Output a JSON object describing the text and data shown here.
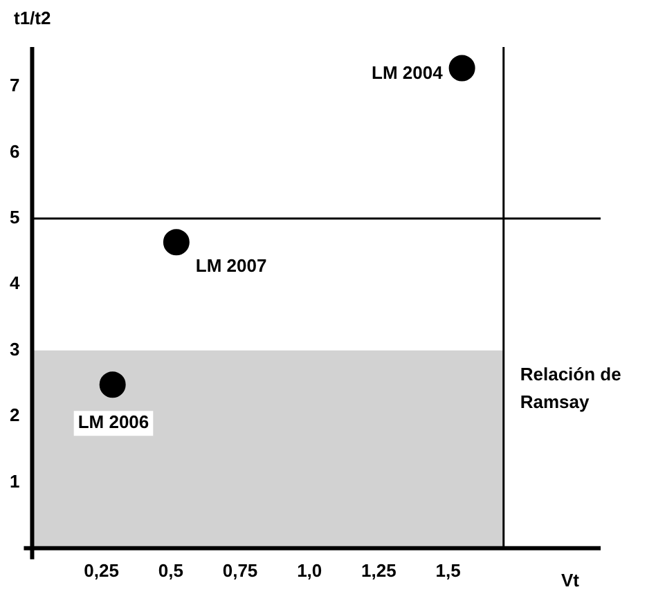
{
  "chart_data": {
    "type": "scatter",
    "xlabel": "Vt",
    "ylabel": "t1/t2",
    "series": [
      {
        "color": "#000000",
        "x": [
          1.55,
          0.52,
          0.29
        ],
        "values": [
          7.28,
          4.64,
          2.48
        ]
      }
    ],
    "marker": "circle",
    "xlim": [
      0,
      2.05
    ],
    "ylim": [
      0,
      7.6
    ],
    "xticks": [
      {
        "value": 0.25,
        "label": "0,25"
      },
      {
        "value": 0.5,
        "label": "0,5"
      },
      {
        "value": 0.75,
        "label": "0,75"
      },
      {
        "value": 1.0,
        "label": "1,0"
      },
      {
        "value": 1.25,
        "label": "1,25"
      },
      {
        "value": 1.5,
        "label": "1,5"
      }
    ],
    "yticks": [
      1,
      2,
      3,
      4,
      5,
      6,
      7
    ],
    "ref_lines": [
      {
        "axis": "y",
        "value": 5,
        "color": "#000000"
      },
      {
        "axis": "x",
        "value": 1.7,
        "color": "#000000"
      }
    ],
    "bands": [
      {
        "axis": "y",
        "from": 0,
        "to": 3,
        "label": "Relación de Ramsay",
        "color": "#d2d2d2"
      }
    ],
    "annotations": [
      {
        "text": "LM 2004",
        "x": 1.55,
        "y": 7.28
      },
      {
        "text": "LM 2007",
        "x": 0.52,
        "y": 4.64
      },
      {
        "text": "LM 2006",
        "x": 0.29,
        "y": 2.48
      }
    ],
    "grid": false,
    "legend": false
  }
}
